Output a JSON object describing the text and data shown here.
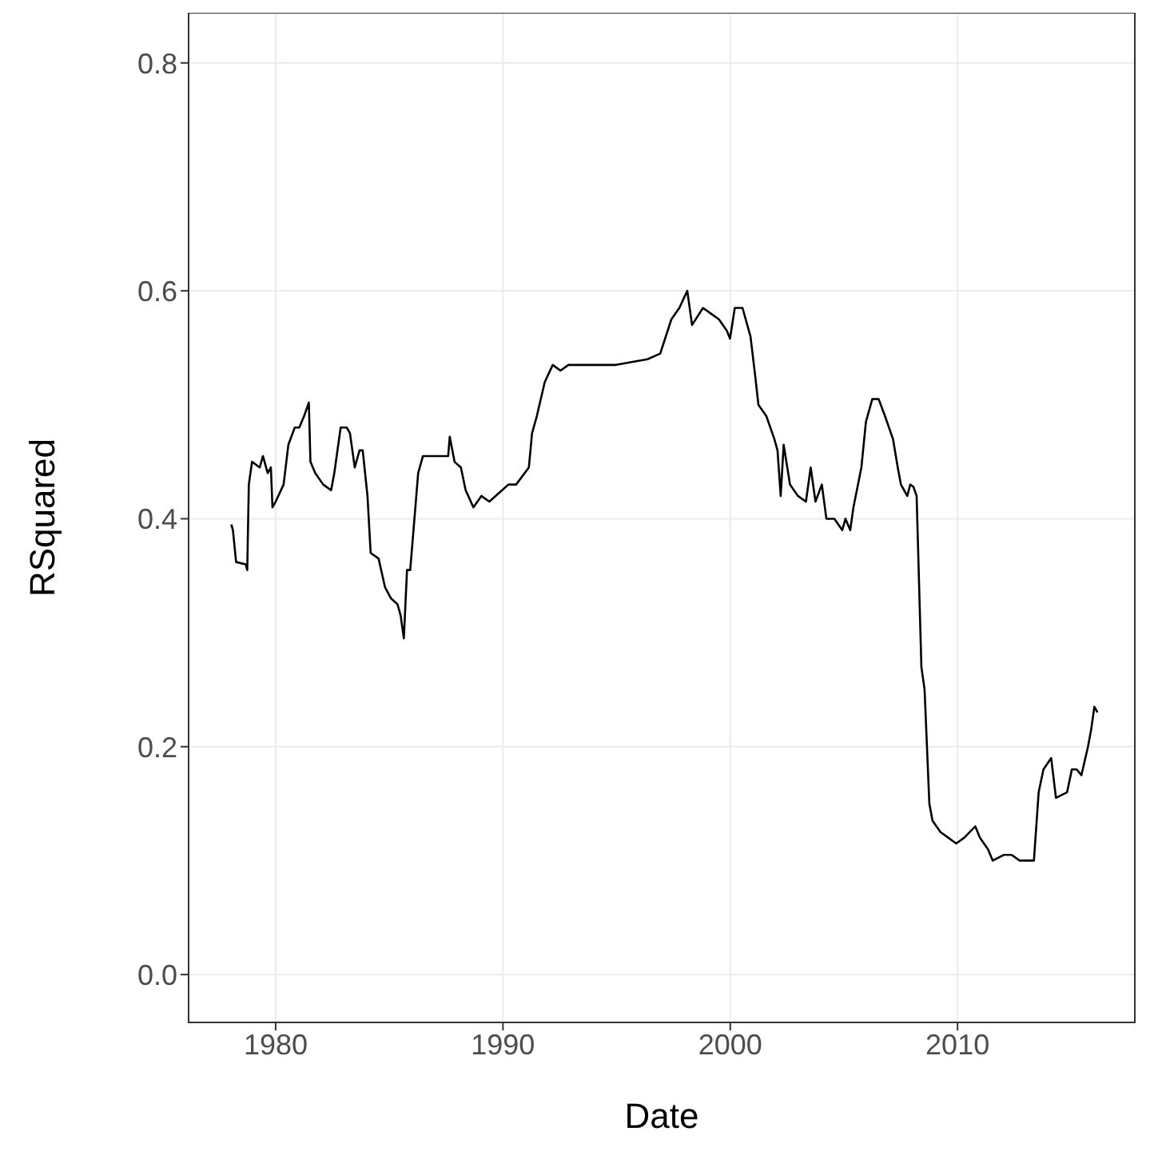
{
  "chart_data": {
    "type": "line",
    "xlabel": "Date",
    "ylabel": "RSquared",
    "xlim": [
      1976.17,
      2017.8
    ],
    "ylim": [
      -0.042,
      0.844
    ],
    "xticks": [
      1980,
      1990,
      2000,
      2010
    ],
    "yticks": [
      {
        "value": 0,
        "label": "0.0"
      },
      0.2,
      0.4,
      0.6,
      0.8
    ],
    "grid": true,
    "legend": false,
    "marker": "none",
    "line_style": "solid",
    "x": [
      1978.05,
      1978.12,
      1978.26,
      1978.68,
      1978.75,
      1978.82,
      1978.96,
      1979.3,
      1979.44,
      1979.65,
      1979.79,
      1979.86,
      1980,
      1980.35,
      1980.56,
      1980.84,
      1981.04,
      1981.25,
      1981.46,
      1981.53,
      1981.74,
      1982.09,
      1982.44,
      1982.58,
      1982.86,
      1983.13,
      1983.27,
      1983.48,
      1983.69,
      1983.83,
      1984.04,
      1984.18,
      1984.53,
      1984.81,
      1985.08,
      1985.36,
      1985.5,
      1985.64,
      1985.78,
      1985.92,
      1986.27,
      1986.48,
      1986.96,
      1987.59,
      1987.66,
      1987.87,
      1988.15,
      1988.36,
      1988.7,
      1989.05,
      1989.4,
      1989.96,
      1990.24,
      1990.58,
      1991.14,
      1991.28,
      1991.49,
      1991.84,
      1992.19,
      1992.53,
      1992.88,
      1993.58,
      1994.28,
      1994.97,
      1996.36,
      1996.92,
      1997.41,
      1997.76,
      1998.11,
      1998.32,
      1998.8,
      1999.15,
      1999.5,
      1999.85,
      1999.99,
      2000.2,
      2000.54,
      2000.89,
      2001.1,
      2001.24,
      2001.59,
      2001.94,
      2002.08,
      2002.22,
      2002.35,
      2002.63,
      2002.98,
      2003.33,
      2003.54,
      2003.75,
      2004.03,
      2004.23,
      2004.58,
      2004.93,
      2005.07,
      2005.28,
      2005.42,
      2005.77,
      2005.97,
      2006.25,
      2006.53,
      2006.81,
      2007.16,
      2007.37,
      2007.51,
      2007.79,
      2007.92,
      2008.06,
      2008.2,
      2008.41,
      2008.55,
      2008.76,
      2008.9,
      2009.25,
      2009.6,
      2009.94,
      2010.29,
      2010.78,
      2010.99,
      2011.34,
      2011.55,
      2012.03,
      2012.38,
      2012.73,
      2013.22,
      2013.36,
      2013.57,
      2013.78,
      2014.12,
      2014.33,
      2014.82,
      2015.03,
      2015.24,
      2015.45,
      2015.74,
      2015.88,
      2016.02,
      2016.16
    ],
    "series": [
      {
        "color": "#000000",
        "values": [
          0.395,
          0.39,
          0.362,
          0.36,
          0.355,
          0.43,
          0.45,
          0.445,
          0.455,
          0.44,
          0.445,
          0.41,
          0.415,
          0.43,
          0.465,
          0.48,
          0.48,
          0.49,
          0.502,
          0.45,
          0.44,
          0.43,
          0.425,
          0.44,
          0.48,
          0.48,
          0.475,
          0.445,
          0.46,
          0.46,
          0.42,
          0.37,
          0.365,
          0.34,
          0.33,
          0.325,
          0.315,
          0.295,
          0.355,
          0.355,
          0.44,
          0.455,
          0.455,
          0.455,
          0.472,
          0.45,
          0.445,
          0.425,
          0.41,
          0.42,
          0.415,
          0.425,
          0.43,
          0.43,
          0.445,
          0.475,
          0.49,
          0.52,
          0.535,
          0.53,
          0.535,
          0.535,
          0.535,
          0.535,
          0.54,
          0.545,
          0.575,
          0.585,
          0.6,
          0.57,
          0.585,
          0.58,
          0.575,
          0.565,
          0.558,
          0.585,
          0.585,
          0.56,
          0.525,
          0.5,
          0.49,
          0.47,
          0.46,
          0.42,
          0.465,
          0.43,
          0.42,
          0.415,
          0.445,
          0.415,
          0.43,
          0.4,
          0.4,
          0.39,
          0.4,
          0.39,
          0.41,
          0.445,
          0.485,
          0.505,
          0.505,
          0.49,
          0.47,
          0.445,
          0.43,
          0.42,
          0.43,
          0.428,
          0.42,
          0.27,
          0.25,
          0.15,
          0.135,
          0.125,
          0.12,
          0.115,
          0.12,
          0.13,
          0.12,
          0.11,
          0.1,
          0.105,
          0.105,
          0.1,
          0.1,
          0.1,
          0.16,
          0.18,
          0.19,
          0.155,
          0.16,
          0.18,
          0.18,
          0.175,
          0.2,
          0.215,
          0.235,
          0.23
        ]
      }
    ]
  }
}
